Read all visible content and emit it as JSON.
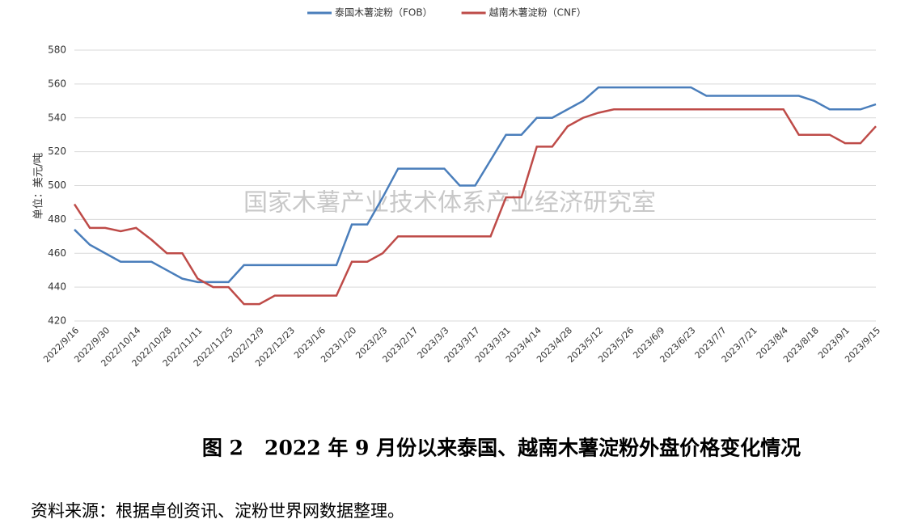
{
  "chart_data": {
    "type": "line",
    "y_label": "单位：美元/吨",
    "watermark": "国家木薯产业技术体系产业经济研究室",
    "categories": [
      "2022/9/16",
      null,
      "2022/9/30",
      null,
      "2022/10/14",
      null,
      "2022/10/28",
      null,
      "2022/11/11",
      null,
      "2022/11/25",
      null,
      "2022/12/9",
      null,
      "2022/12/23",
      null,
      "2023/1/6",
      null,
      "2023/1/20",
      null,
      "2023/2/3",
      null,
      "2023/2/17",
      null,
      "2023/3/3",
      null,
      "2023/3/17",
      null,
      "2023/3/31",
      null,
      "2023/4/14",
      null,
      "2023/4/28",
      null,
      "2023/5/12",
      null,
      "2023/5/26",
      null,
      "2023/6/9",
      null,
      "2023/6/23",
      null,
      "2023/7/7",
      null,
      "2023/7/21",
      null,
      "2023/8/4",
      null,
      "2023/8/18",
      null,
      "2023/9/1",
      null,
      "2023/9/15"
    ],
    "series": [
      {
        "name": "泰国木薯淀粉（FOB）",
        "color": "#4a7ebb",
        "values": [
          474,
          465,
          460,
          455,
          455,
          455,
          450,
          445,
          443,
          443,
          443,
          453,
          453,
          453,
          453,
          453,
          453,
          453,
          477,
          477,
          493,
          510,
          510,
          510,
          510,
          500,
          500,
          515,
          530,
          530,
          540,
          540,
          545,
          550,
          558,
          558,
          558,
          558,
          558,
          558,
          558,
          553,
          553,
          553,
          553,
          553,
          553,
          553,
          550,
          545,
          545,
          545,
          548
        ]
      },
      {
        "name": "越南木薯淀粉（CNF）",
        "color": "#be4b48",
        "values": [
          489,
          475,
          475,
          473,
          475,
          468,
          460,
          460,
          445,
          440,
          440,
          430,
          430,
          435,
          435,
          435,
          435,
          435,
          455,
          455,
          460,
          470,
          470,
          470,
          470,
          470,
          470,
          470,
          493,
          493,
          523,
          523,
          535,
          540,
          543,
          545,
          545,
          545,
          545,
          545,
          545,
          545,
          545,
          545,
          545,
          545,
          545,
          530,
          530,
          530,
          525,
          525,
          535
        ]
      }
    ],
    "ylim": [
      420,
      580
    ],
    "yticks": [
      420,
      440,
      460,
      480,
      500,
      520,
      540,
      560,
      580
    ],
    "grid": true
  },
  "caption": "图 2   2022 年 9 月份以来泰国、越南木薯淀粉外盘价格变化情况",
  "source": "资料来源：根据卓创资讯、淀粉世界网数据整理。"
}
